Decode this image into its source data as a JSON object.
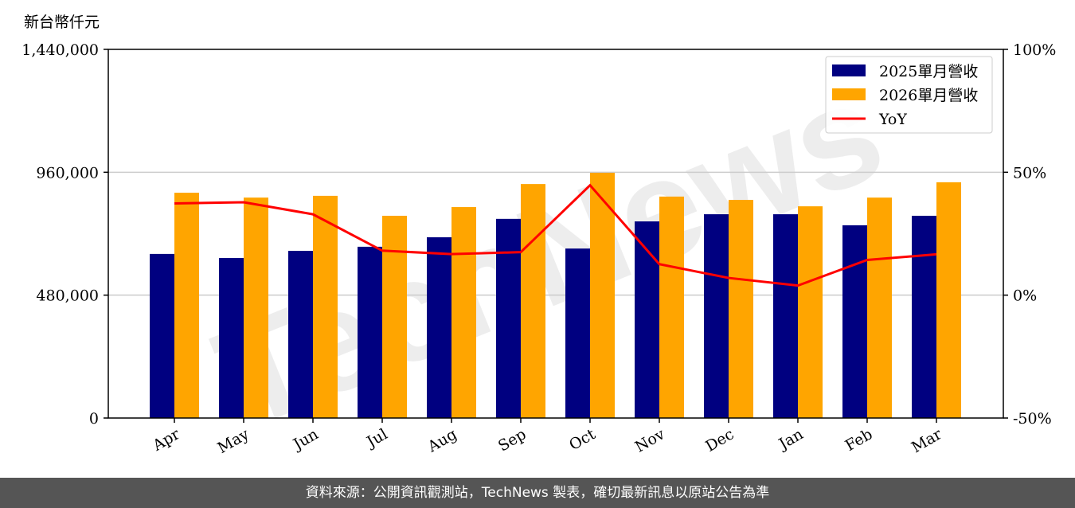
{
  "chart_data": {
    "type": "bar",
    "ylabel": "新台幣仟元",
    "categories": [
      "Apr",
      "May",
      "Jun",
      "Jul",
      "Aug",
      "Sep",
      "Oct",
      "Nov",
      "Dec",
      "Jan",
      "Feb",
      "Mar"
    ],
    "series": [
      {
        "name": "2025單月營收",
        "color": "#000080",
        "values": [
          641000,
          625000,
          653000,
          669000,
          706000,
          778000,
          662000,
          768000,
          796000,
          796000,
          753000,
          790000
        ]
      },
      {
        "name": "2026單月營收",
        "color": "#FFA500",
        "values": [
          880000,
          861000,
          868000,
          790000,
          824000,
          914000,
          958000,
          865000,
          852000,
          827000,
          861000,
          921000
        ]
      }
    ],
    "line_series": {
      "name": "YoY",
      "color": "#FF0000",
      "axis": "right",
      "values": [
        37.3,
        37.8,
        32.9,
        18.1,
        16.7,
        17.5,
        44.7,
        12.6,
        7.0,
        3.9,
        14.3,
        16.6
      ]
    },
    "ylim": [
      0,
      1440000
    ],
    "yticks": [
      "0",
      "480,000",
      "960,000",
      "1,440,000"
    ],
    "y2lim": [
      -50,
      100
    ],
    "y2ticks": [
      "-50%",
      "0%",
      "50%",
      "100%"
    ],
    "grid": "horizontal",
    "legend": "top-right"
  },
  "watermark": "TechNews",
  "footer": "資料來源：公開資訊觀測站，TechNews 製表，確切最新訊息以原站公告為準"
}
